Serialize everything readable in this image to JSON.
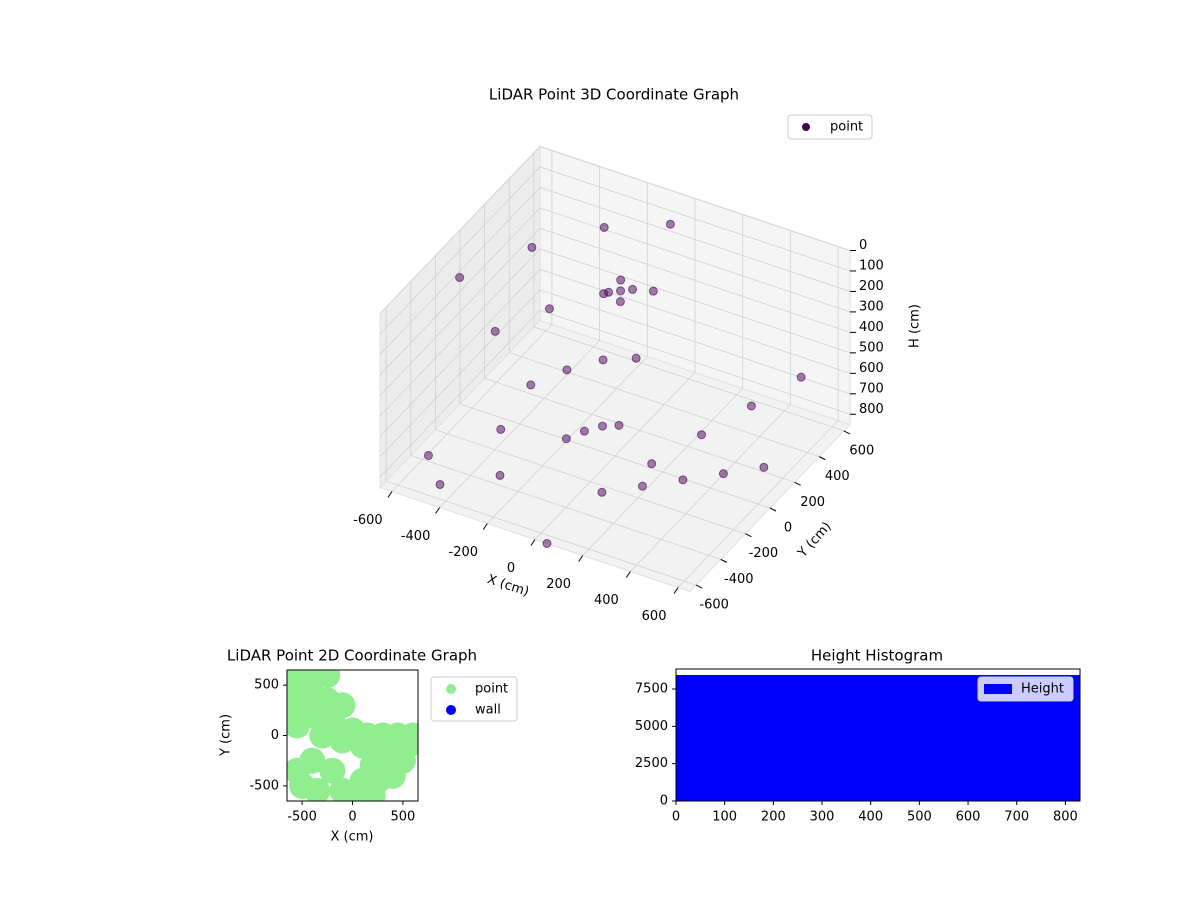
{
  "chart_data": [
    {
      "type": "scatter3d",
      "title": "LiDAR Point 3D Coordinate Graph",
      "xlabel": "X (cm)",
      "ylabel": "Y (cm)",
      "zlabel": "H (cm)",
      "xlim": [
        -650,
        650
      ],
      "ylim": [
        -650,
        650
      ],
      "zlim": [
        0,
        850
      ],
      "z_inverted": true,
      "xticks": [
        -600,
        -400,
        -200,
        0,
        200,
        400,
        600
      ],
      "yticks": [
        -600,
        -400,
        -200,
        0,
        200,
        400,
        600
      ],
      "zticks": [
        0,
        100,
        200,
        300,
        400,
        500,
        600,
        700,
        800
      ],
      "legend": "upper right",
      "series": [
        {
          "name": "point",
          "color": "#440154",
          "x": [
            100,
            -75,
            -250,
            -425,
            -600,
            -25,
            -150,
            -275,
            -400,
            25,
            -50,
            -125,
            -200,
            75,
            50,
            25,
            0,
            225,
            350,
            475,
            600,
            238,
            375,
            513,
            650,
            -80,
            -40,
            -120,
            -60,
            -100,
            -550,
            -450,
            -350,
            -250,
            50
          ],
          "y": [
            -300,
            -250,
            -200,
            -150,
            -100,
            -200,
            -100,
            0,
            100,
            -150,
            0,
            150,
            300,
            -113,
            75,
            263,
            450,
            -138,
            25,
            188,
            350,
            -238,
            -175,
            -113,
            -50,
            200,
            220,
            180,
            160,
            240,
            -450,
            -550,
            -250,
            -450,
            -650
          ],
          "z": [
            800,
            638,
            475,
            313,
            150,
            613,
            425,
            238,
            50,
            600,
            400,
            200,
            0,
            600,
            400,
            200,
            0,
            713,
            625,
            538,
            450,
            755,
            710,
            665,
            620,
            200,
            190,
            210,
            220,
            180,
            780,
            820,
            700,
            760,
            850
          ]
        }
      ]
    },
    {
      "type": "scatter",
      "title": "LiDAR Point 2D Coordinate Graph",
      "xlabel": "X (cm)",
      "ylabel": "Y (cm)",
      "xlim": [
        -650,
        650
      ],
      "ylim": [
        -650,
        650
      ],
      "xticks": [
        -500,
        0,
        500
      ],
      "yticks": [
        -500,
        0,
        500
      ],
      "legend": "outside right",
      "series": [
        {
          "name": "point",
          "color": "#90ee90",
          "x": [
            -550,
            -400,
            -250,
            -550,
            -400,
            -250,
            -100,
            -550,
            -400,
            -200,
            0,
            150,
            300,
            450,
            600,
            -550,
            -300,
            -100,
            100,
            250,
            400,
            550,
            200,
            350,
            500,
            100,
            250,
            400,
            -100,
            50,
            200,
            -550,
            -500,
            -350,
            -200,
            -400
          ],
          "y": [
            550,
            550,
            600,
            400,
            400,
            350,
            300,
            250,
            200,
            150,
            50,
            0,
            0,
            0,
            0,
            100,
            0,
            -50,
            -100,
            -150,
            -150,
            -100,
            -300,
            -300,
            -250,
            -450,
            -450,
            -400,
            -550,
            -600,
            -600,
            -350,
            -500,
            -550,
            -350,
            -250
          ]
        },
        {
          "name": "wall",
          "color": "#0000ff",
          "x": [],
          "y": []
        }
      ]
    },
    {
      "type": "histogram",
      "title": "Height Histogram",
      "xlim": [
        0,
        830
      ],
      "ylim": [
        0,
        8840
      ],
      "xticks": [
        0,
        100,
        200,
        300,
        400,
        500,
        600,
        700,
        800
      ],
      "yticks": [
        0,
        2500,
        5000,
        7500
      ],
      "legend": "upper right",
      "series": [
        {
          "name": "Height",
          "color": "#0000ff",
          "bins": [
            0,
            830
          ],
          "counts": [
            8440
          ]
        }
      ]
    }
  ]
}
